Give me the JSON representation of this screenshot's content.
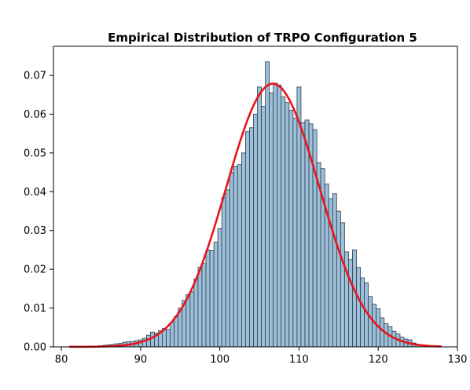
{
  "chart_data": {
    "type": "bar",
    "title": "Empirical Distribution of TRPO Configuration 5",
    "xlabel": "",
    "ylabel": "",
    "xlim": [
      79.0,
      130.0
    ],
    "ylim": [
      0.0,
      0.0775
    ],
    "x_ticks": [
      80,
      90,
      100,
      110,
      120,
      130
    ],
    "x_tick_labels": [
      "80",
      "90",
      "100",
      "110",
      "120",
      "130"
    ],
    "y_ticks": [
      0.0,
      0.01,
      0.02,
      0.03,
      0.04,
      0.05,
      0.06,
      0.07
    ],
    "y_tick_labels": [
      "0.00",
      "0.01",
      "0.02",
      "0.03",
      "0.04",
      "0.05",
      "0.06",
      "0.07"
    ],
    "grid": false,
    "legend": "none",
    "bin_width": 0.5,
    "bin_centers": [
      84.0,
      84.5,
      85.0,
      85.5,
      86.0,
      86.5,
      87.0,
      87.5,
      88.0,
      88.5,
      89.0,
      89.5,
      90.0,
      90.5,
      91.0,
      91.5,
      92.0,
      92.5,
      93.0,
      93.5,
      94.0,
      94.5,
      95.0,
      95.5,
      96.0,
      96.5,
      97.0,
      97.5,
      98.0,
      98.5,
      99.0,
      99.5,
      100.0,
      100.5,
      101.0,
      101.5,
      102.0,
      102.5,
      103.0,
      103.5,
      104.0,
      104.5,
      105.0,
      105.5,
      106.0,
      106.5,
      107.0,
      107.5,
      108.0,
      108.5,
      109.0,
      109.5,
      110.0,
      110.5,
      111.0,
      111.5,
      112.0,
      112.5,
      113.0,
      113.5,
      114.0,
      114.5,
      115.0,
      115.5,
      116.0,
      116.5,
      117.0,
      117.5,
      118.0,
      118.5,
      119.0,
      119.5,
      120.0,
      120.5,
      121.0,
      121.5,
      122.0,
      122.5,
      123.0,
      123.5,
      124.0,
      124.5,
      125.0
    ],
    "densities": [
      0.0002,
      0.0002,
      0.0003,
      0.0004,
      0.0005,
      0.0006,
      0.0008,
      0.0009,
      0.0012,
      0.0013,
      0.0014,
      0.0016,
      0.0018,
      0.0022,
      0.003,
      0.0038,
      0.0035,
      0.0042,
      0.0048,
      0.0045,
      0.0063,
      0.0078,
      0.01,
      0.012,
      0.0135,
      0.0142,
      0.0175,
      0.0205,
      0.0215,
      0.025,
      0.0248,
      0.027,
      0.0305,
      0.0385,
      0.0405,
      0.045,
      0.0465,
      0.047,
      0.05,
      0.0555,
      0.0565,
      0.06,
      0.067,
      0.062,
      0.0735,
      0.0655,
      0.068,
      0.0675,
      0.0645,
      0.063,
      0.061,
      0.059,
      0.067,
      0.0578,
      0.0585,
      0.0575,
      0.056,
      0.0475,
      0.046,
      0.042,
      0.0382,
      0.0395,
      0.035,
      0.032,
      0.0245,
      0.0225,
      0.025,
      0.0205,
      0.0178,
      0.0165,
      0.013,
      0.011,
      0.0098,
      0.0075,
      0.006,
      0.0052,
      0.004,
      0.0033,
      0.0025,
      0.002,
      0.0018,
      0.001,
      0.0006
    ],
    "fit_curve": {
      "type": "normal_pdf",
      "mean": 106.7,
      "std": 5.88,
      "x_range": [
        81.0,
        128.0
      ],
      "color": "#e8141c"
    },
    "colors": {
      "bar_fill": "#9dbfd8",
      "bar_edge": "#2b3d4f",
      "curve": "#e8141c",
      "axes": "#000000"
    }
  }
}
